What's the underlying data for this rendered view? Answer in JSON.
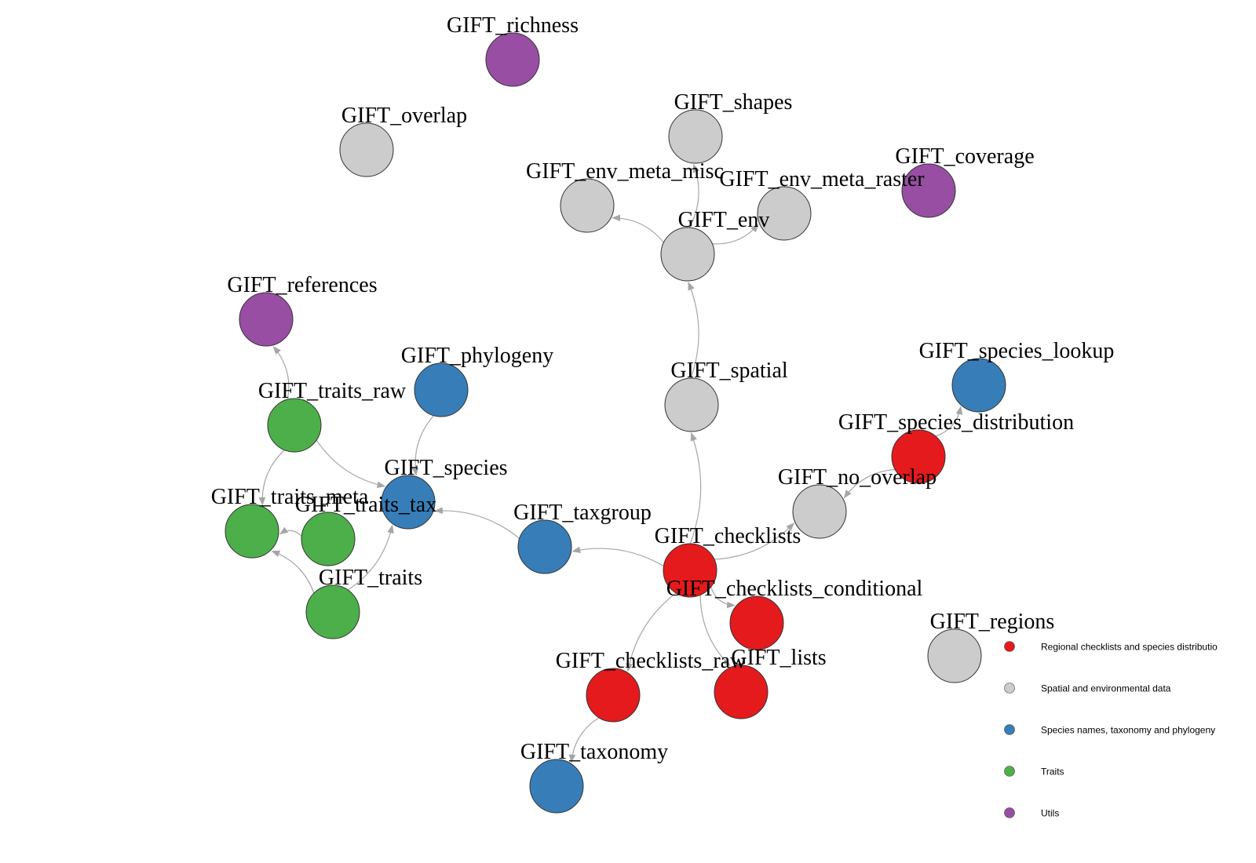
{
  "colors": {
    "regional": "#e41a1c",
    "spatial": "#cccccc",
    "species": "#377eb8",
    "traits": "#4daf4a",
    "utils": "#984ea3",
    "edge": "#a6a6a6"
  },
  "nodes": [
    {
      "id": "GIFT_richness",
      "label": "GIFT_richness",
      "group": "utils"
    },
    {
      "id": "GIFT_overlap",
      "label": "GIFT_overlap",
      "group": "spatial"
    },
    {
      "id": "GIFT_shapes",
      "label": "GIFT_shapes",
      "group": "spatial"
    },
    {
      "id": "GIFT_coverage",
      "label": "GIFT_coverage",
      "group": "utils"
    },
    {
      "id": "GIFT_env_meta_misc",
      "label": "GIFT_env_meta_misc",
      "group": "spatial"
    },
    {
      "id": "GIFT_env_meta_raster",
      "label": "GIFT_env_meta_raster",
      "group": "spatial"
    },
    {
      "id": "GIFT_env",
      "label": "GIFT_env",
      "group": "spatial"
    },
    {
      "id": "GIFT_references",
      "label": "GIFT_references",
      "group": "utils"
    },
    {
      "id": "GIFT_phylogeny",
      "label": "GIFT_phylogeny",
      "group": "species"
    },
    {
      "id": "GIFT_spatial",
      "label": "GIFT_spatial",
      "group": "spatial"
    },
    {
      "id": "GIFT_species_lookup",
      "label": "GIFT_species_lookup",
      "group": "species"
    },
    {
      "id": "GIFT_traits_raw",
      "label": "GIFT_traits_raw",
      "group": "traits"
    },
    {
      "id": "GIFT_species_distribution",
      "label": "GIFT_species_distribution",
      "group": "regional"
    },
    {
      "id": "GIFT_species",
      "label": "GIFT_species",
      "group": "species"
    },
    {
      "id": "GIFT_no_overlap",
      "label": "GIFT_no_overlap",
      "group": "spatial"
    },
    {
      "id": "GIFT_traits_meta",
      "label": "GIFT_traits_meta",
      "group": "traits"
    },
    {
      "id": "GIFT_traits_tax",
      "label": "GIFT_traits_tax",
      "group": "traits"
    },
    {
      "id": "GIFT_taxgroup",
      "label": "GIFT_taxgroup",
      "group": "species"
    },
    {
      "id": "GIFT_checklists",
      "label": "GIFT_checklists",
      "group": "regional"
    },
    {
      "id": "GIFT_traits",
      "label": "GIFT_traits",
      "group": "traits"
    },
    {
      "id": "GIFT_checklists_conditional",
      "label": "GIFT_checklists_conditional",
      "group": "regional"
    },
    {
      "id": "GIFT_regions",
      "label": "GIFT_regions",
      "group": "spatial"
    },
    {
      "id": "GIFT_checklists_raw",
      "label": "GIFT_checklists_raw",
      "group": "regional"
    },
    {
      "id": "GIFT_lists",
      "label": "GIFT_lists",
      "group": "regional"
    },
    {
      "id": "GIFT_taxonomy",
      "label": "GIFT_taxonomy",
      "group": "species"
    }
  ],
  "edges": [
    {
      "from": "GIFT_env",
      "to": "GIFT_env_meta_misc"
    },
    {
      "from": "GIFT_env",
      "to": "GIFT_env_meta_raster"
    },
    {
      "from": "GIFT_env",
      "to": "GIFT_shapes"
    },
    {
      "from": "GIFT_spatial",
      "to": "GIFT_env"
    },
    {
      "from": "GIFT_checklists",
      "to": "GIFT_spatial"
    },
    {
      "from": "GIFT_checklists",
      "to": "GIFT_taxgroup"
    },
    {
      "from": "GIFT_checklists",
      "to": "GIFT_no_overlap"
    },
    {
      "from": "GIFT_checklists",
      "to": "GIFT_checklists_conditional"
    },
    {
      "from": "GIFT_checklists",
      "to": "GIFT_checklists_raw"
    },
    {
      "from": "GIFT_checklists",
      "to": "GIFT_lists"
    },
    {
      "from": "GIFT_species_distribution",
      "to": "GIFT_species_lookup"
    },
    {
      "from": "GIFT_species_distribution",
      "to": "GIFT_no_overlap"
    },
    {
      "from": "GIFT_taxgroup",
      "to": "GIFT_species"
    },
    {
      "from": "GIFT_phylogeny",
      "to": "GIFT_species"
    },
    {
      "from": "GIFT_traits_raw",
      "to": "GIFT_species"
    },
    {
      "from": "GIFT_traits_raw",
      "to": "GIFT_references"
    },
    {
      "from": "GIFT_traits_raw",
      "to": "GIFT_traits_meta"
    },
    {
      "from": "GIFT_traits_tax",
      "to": "GIFT_traits_meta"
    },
    {
      "from": "GIFT_traits",
      "to": "GIFT_traits_meta"
    },
    {
      "from": "GIFT_traits",
      "to": "GIFT_species"
    },
    {
      "from": "GIFT_checklists_raw",
      "to": "GIFT_taxonomy"
    }
  ],
  "legend": {
    "items": [
      {
        "group": "regional",
        "label": "Regional checklists and species distributio"
      },
      {
        "group": "spatial",
        "label": "Spatial and environmental data"
      },
      {
        "group": "species",
        "label": "Species names, taxonomy and phylogeny"
      },
      {
        "group": "traits",
        "label": "Traits"
      },
      {
        "group": "utils",
        "label": "Utils"
      }
    ]
  }
}
